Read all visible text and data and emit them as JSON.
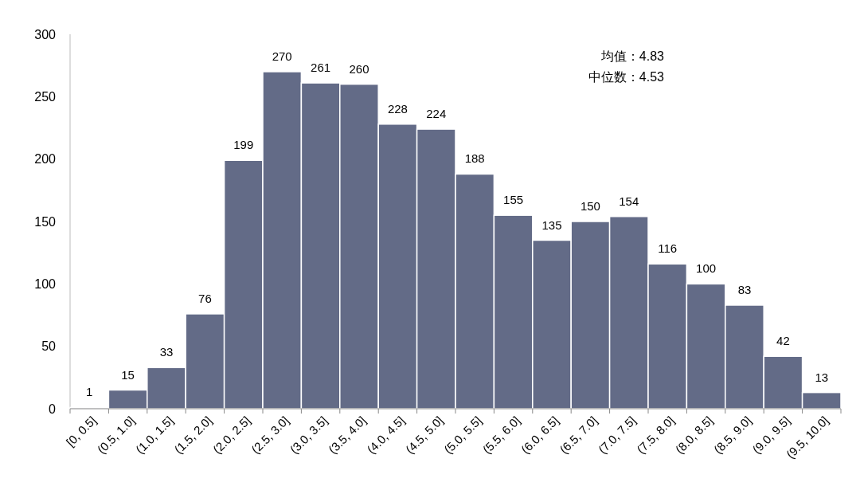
{
  "chart_data": {
    "type": "bar",
    "categories": [
      "[0, 0.5]",
      "(0.5, 1.0]",
      "(1.0, 1.5]",
      "(1.5, 2.0]",
      "(2.0, 2.5]",
      "(2.5, 3.0]",
      "(3.0, 3.5]",
      "(3.5, 4.0]",
      "(4.0, 4.5]",
      "(4.5, 5.0]",
      "(5.0, 5.5]",
      "(5.5, 6.0]",
      "(6.0, 6.5]",
      "(6.5, 7.0]",
      "(7.0, 7.5]",
      "(7.5, 8.0]",
      "(8.0, 8.5]",
      "(8.5, 9.0]",
      "(9.0, 9.5]",
      "(9.5, 10.0]"
    ],
    "values": [
      1,
      15,
      33,
      76,
      199,
      270,
      261,
      260,
      228,
      224,
      188,
      155,
      135,
      150,
      154,
      116,
      100,
      83,
      42,
      13
    ],
    "color": "#636b87",
    "ylim": [
      0,
      300
    ],
    "yticks": [
      0,
      50,
      100,
      150,
      200,
      250,
      300
    ],
    "grid": false,
    "data_labels": true,
    "annotations": [
      "均值：4.83",
      "中位数：4.53"
    ]
  }
}
